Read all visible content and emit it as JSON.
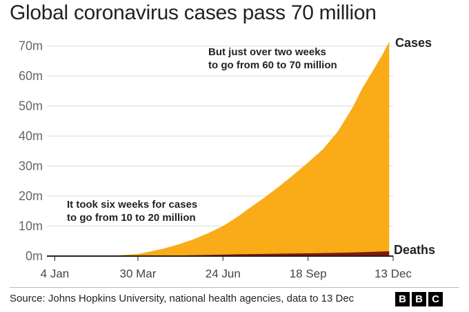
{
  "chart_data": {
    "type": "area",
    "title": "Global coronavirus cases pass 70 million",
    "xlabel": "",
    "ylabel": "",
    "x_tick_labels": [
      "4 Jan",
      "30 Mar",
      "24 Jun",
      "18 Sep",
      "13 Dec"
    ],
    "y_tick_labels": [
      "0m",
      "10m",
      "20m",
      "30m",
      "40m",
      "50m",
      "60m",
      "70m"
    ],
    "ylim": [
      0,
      72
    ],
    "xlim_days": [
      -4,
      346
    ],
    "grid": true,
    "series": [
      {
        "name": "Cases",
        "color": "#faab18",
        "days": [
          0,
          30,
          60,
          88,
          100,
          115,
          130,
          145,
          160,
          175,
          190,
          200,
          215,
          230,
          245,
          260,
          275,
          290,
          305,
          315,
          325,
          335,
          339,
          342
        ],
        "values": [
          0,
          0,
          0.1,
          0.7,
          1.5,
          2.6,
          4.0,
          5.7,
          7.8,
          10.2,
          13.4,
          15.8,
          19.3,
          23.0,
          27.0,
          31.2,
          35.6,
          41.5,
          49.5,
          56.0,
          61.5,
          67.0,
          69.5,
          71.5
        ]
      },
      {
        "name": "Deaths",
        "color": "#7d1a0d",
        "days": [
          0,
          60,
          88,
          130,
          160,
          190,
          230,
          270,
          305,
          325,
          342
        ],
        "values": [
          0,
          0,
          0.03,
          0.2,
          0.4,
          0.6,
          0.8,
          1.0,
          1.2,
          1.4,
          1.6
        ]
      }
    ],
    "annotations": [
      {
        "lines": [
          "But just over two weeks",
          "to go from 60 to 70 million"
        ]
      },
      {
        "lines": [
          "It took six weeks for cases",
          "to go from 10 to 20 million"
        ]
      }
    ]
  },
  "source": "Source: Johns Hopkins University, national health agencies, data to 13 Dec",
  "logo": [
    "B",
    "B",
    "C"
  ]
}
